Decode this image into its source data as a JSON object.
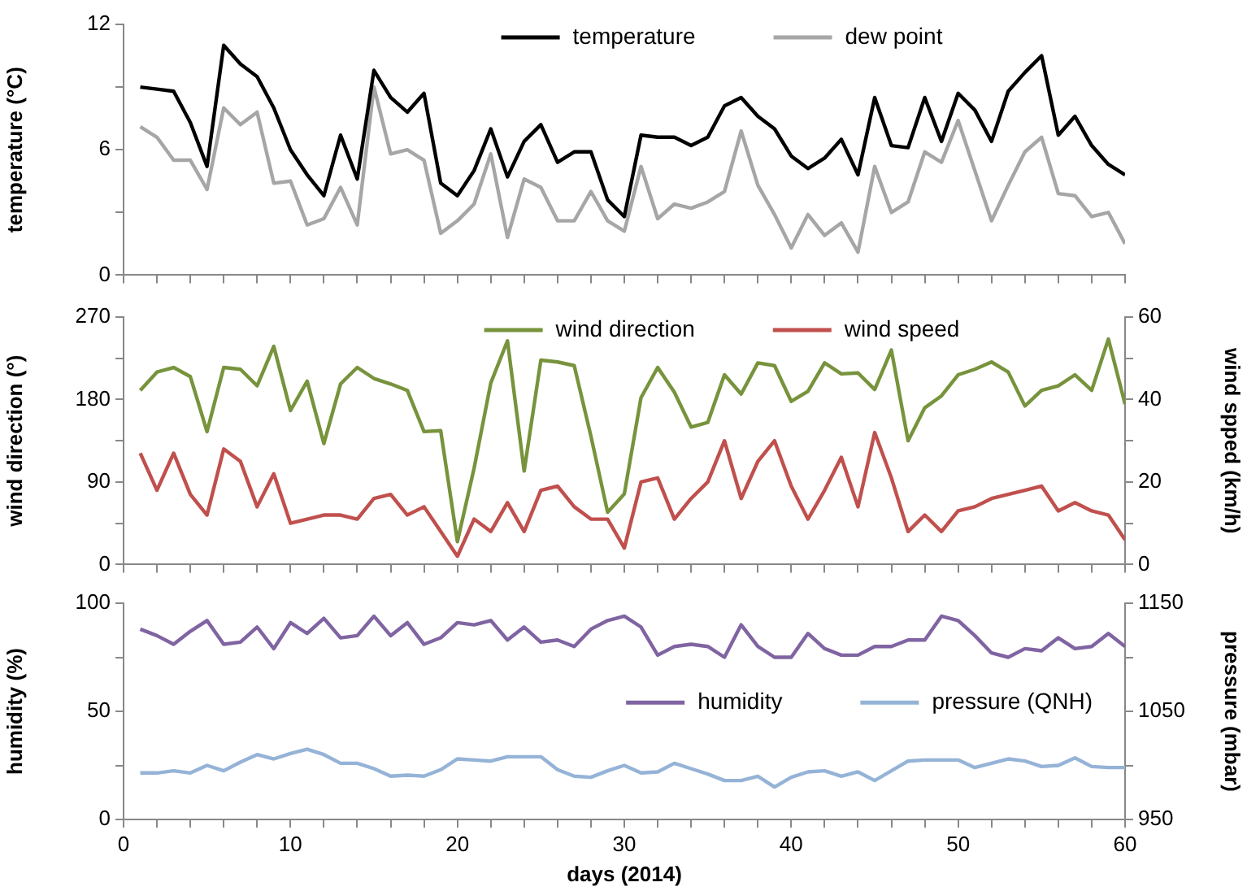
{
  "chart_data": [
    {
      "type": "line",
      "ylabel": "temperature (°C)",
      "x": [
        1,
        2,
        3,
        4,
        5,
        6,
        7,
        8,
        9,
        10,
        11,
        12,
        13,
        14,
        15,
        16,
        17,
        18,
        19,
        20,
        21,
        22,
        23,
        24,
        25,
        26,
        27,
        28,
        29,
        30,
        31,
        32,
        33,
        34,
        35,
        36,
        37,
        38,
        39,
        40,
        41,
        42,
        43,
        44,
        45,
        46,
        47,
        48,
        49,
        50,
        51,
        52,
        53,
        54,
        55,
        56,
        57,
        58,
        59,
        60
      ],
      "xlim": [
        0,
        60
      ],
      "xticks": [
        0,
        {
          "value": 2,
          "label": null
        },
        {
          "value": 4,
          "label": null
        },
        {
          "value": 6,
          "label": null
        },
        {
          "value": 8,
          "label": null
        },
        10,
        {
          "value": 12,
          "label": null
        },
        {
          "value": 14,
          "label": null
        },
        {
          "value": 16,
          "label": null
        },
        {
          "value": 18,
          "label": null
        },
        20,
        {
          "value": 22,
          "label": null
        },
        {
          "value": 24,
          "label": null
        },
        {
          "value": 26,
          "label": null
        },
        {
          "value": 28,
          "label": null
        },
        30,
        {
          "value": 32,
          "label": null
        },
        {
          "value": 34,
          "label": null
        },
        {
          "value": 36,
          "label": null
        },
        {
          "value": 38,
          "label": null
        },
        40,
        {
          "value": 42,
          "label": null
        },
        {
          "value": 44,
          "label": null
        },
        {
          "value": 46,
          "label": null
        },
        {
          "value": 48,
          "label": null
        },
        50,
        {
          "value": 52,
          "label": null
        },
        {
          "value": 54,
          "label": null
        },
        {
          "value": 56,
          "label": null
        },
        {
          "value": 58,
          "label": null
        },
        60
      ],
      "ylim": [
        0,
        12
      ],
      "yticks": [
        0,
        {
          "value": 3,
          "label": null
        },
        6,
        {
          "value": 9,
          "label": null
        },
        12
      ],
      "legend": "top",
      "tick_labels": "y",
      "series": [
        {
          "name": "temperature",
          "color": "#000000",
          "values": [
            9.0,
            8.9,
            8.8,
            7.3,
            5.2,
            11.0,
            10.1,
            9.5,
            8.0,
            6.0,
            4.8,
            3.8,
            6.7,
            4.6,
            9.8,
            8.5,
            7.8,
            8.7,
            4.4,
            3.8,
            5.0,
            7.0,
            4.7,
            6.4,
            7.2,
            5.4,
            5.9,
            5.9,
            3.6,
            2.8,
            6.7,
            6.6,
            6.6,
            6.2,
            6.6,
            8.1,
            8.5,
            7.6,
            7.0,
            5.7,
            5.1,
            5.6,
            6.5,
            4.8,
            8.5,
            6.2,
            6.1,
            8.5,
            6.4,
            8.7,
            7.9,
            6.4,
            8.8,
            9.7,
            10.5,
            6.7,
            7.6,
            6.2,
            5.3,
            4.8
          ]
        },
        {
          "name": "dew point",
          "color": "#a6a6a6",
          "values": [
            7.1,
            6.6,
            5.5,
            5.5,
            4.1,
            8.0,
            7.2,
            7.8,
            4.4,
            4.5,
            2.4,
            2.7,
            4.2,
            2.4,
            9.0,
            5.8,
            6.0,
            5.5,
            2.0,
            2.6,
            3.4,
            5.8,
            1.8,
            4.6,
            4.2,
            2.6,
            2.6,
            4.0,
            2.6,
            2.1,
            5.2,
            2.7,
            3.4,
            3.2,
            3.5,
            4.0,
            6.9,
            4.3,
            2.9,
            1.3,
            2.9,
            1.9,
            2.5,
            1.1,
            5.2,
            3.0,
            3.5,
            5.9,
            5.4,
            7.4,
            5.0,
            2.6,
            4.3,
            5.9,
            6.6,
            3.9,
            3.8,
            2.8,
            3.0,
            1.5
          ]
        }
      ]
    },
    {
      "type": "line",
      "ylabel": "wind direction (°)",
      "y2label": "wind spped (km/h)",
      "x": [
        1,
        2,
        3,
        4,
        5,
        6,
        7,
        8,
        9,
        10,
        11,
        12,
        13,
        14,
        15,
        16,
        17,
        18,
        19,
        20,
        21,
        22,
        23,
        24,
        25,
        26,
        27,
        28,
        29,
        30,
        31,
        32,
        33,
        34,
        35,
        36,
        37,
        38,
        39,
        40,
        41,
        42,
        43,
        44,
        45,
        46,
        47,
        48,
        49,
        50,
        51,
        52,
        53,
        54,
        55,
        56,
        57,
        58,
        59,
        60
      ],
      "xlim": [
        0,
        60
      ],
      "xticks": [
        0,
        {
          "value": 2,
          "label": null
        },
        {
          "value": 4,
          "label": null
        },
        {
          "value": 6,
          "label": null
        },
        {
          "value": 8,
          "label": null
        },
        10,
        {
          "value": 12,
          "label": null
        },
        {
          "value": 14,
          "label": null
        },
        {
          "value": 16,
          "label": null
        },
        {
          "value": 18,
          "label": null
        },
        20,
        {
          "value": 22,
          "label": null
        },
        {
          "value": 24,
          "label": null
        },
        {
          "value": 26,
          "label": null
        },
        {
          "value": 28,
          "label": null
        },
        30,
        {
          "value": 32,
          "label": null
        },
        {
          "value": 34,
          "label": null
        },
        {
          "value": 36,
          "label": null
        },
        {
          "value": 38,
          "label": null
        },
        40,
        {
          "value": 42,
          "label": null
        },
        {
          "value": 44,
          "label": null
        },
        {
          "value": 46,
          "label": null
        },
        {
          "value": 48,
          "label": null
        },
        50,
        {
          "value": 52,
          "label": null
        },
        {
          "value": 54,
          "label": null
        },
        {
          "value": 56,
          "label": null
        },
        {
          "value": 58,
          "label": null
        },
        60
      ],
      "ylim": [
        0,
        270
      ],
      "yticks": [
        0,
        {
          "value": 45,
          "label": null
        },
        90,
        {
          "value": 135,
          "label": null
        },
        180,
        {
          "value": 225,
          "label": null
        },
        270
      ],
      "y2lim": [
        0,
        60
      ],
      "y2ticks": [
        0,
        {
          "value": 10,
          "label": null
        },
        20,
        {
          "value": 30,
          "label": null
        },
        40,
        {
          "value": 50,
          "label": null
        },
        60
      ],
      "legend": "top",
      "tick_labels": "y",
      "series": [
        {
          "name": "wind direction",
          "color": "#77933c",
          "values": [
            190,
            210,
            215,
            205,
            145,
            215,
            213,
            195,
            238,
            168,
            200,
            132,
            197,
            215,
            203,
            197,
            190,
            145,
            146,
            25,
            105,
            198,
            244,
            102,
            223,
            221,
            217,
            140,
            57,
            77,
            182,
            215,
            188,
            150,
            155,
            207,
            186,
            220,
            217,
            178,
            189,
            220,
            208,
            209,
            191,
            234,
            135,
            171,
            184,
            207,
            213,
            221,
            210,
            173,
            190,
            195,
            207,
            190,
            246,
            175
          ]
        },
        {
          "name": "wind speed",
          "color": "#c0504d",
          "axis": "y2",
          "values": [
            27,
            18,
            27,
            17,
            12,
            28,
            25,
            14,
            22,
            10,
            11,
            12,
            12,
            11,
            16,
            17,
            12,
            14,
            8,
            2,
            11,
            8,
            15,
            8,
            18,
            19,
            14,
            11,
            11,
            4,
            20,
            21,
            11,
            16,
            20,
            30,
            16,
            25,
            30,
            19,
            11,
            18,
            26,
            14,
            32,
            21,
            8,
            12,
            8,
            13,
            14,
            16,
            17,
            18,
            19,
            13,
            15,
            13,
            12,
            6
          ]
        }
      ]
    },
    {
      "type": "line",
      "xlabel": "days (2014)",
      "ylabel": "humidity (%)",
      "y2label": "pressure (mbar)",
      "x": [
        1,
        2,
        3,
        4,
        5,
        6,
        7,
        8,
        9,
        10,
        11,
        12,
        13,
        14,
        15,
        16,
        17,
        18,
        19,
        20,
        21,
        22,
        23,
        24,
        25,
        26,
        27,
        28,
        29,
        30,
        31,
        32,
        33,
        34,
        35,
        36,
        37,
        38,
        39,
        40,
        41,
        42,
        43,
        44,
        45,
        46,
        47,
        48,
        49,
        50,
        51,
        52,
        53,
        54,
        55,
        56,
        57,
        58,
        59,
        60
      ],
      "xlim": [
        0,
        60
      ],
      "xticks": [
        0,
        {
          "value": 2,
          "label": null
        },
        {
          "value": 4,
          "label": null
        },
        {
          "value": 6,
          "label": null
        },
        {
          "value": 8,
          "label": null
        },
        10,
        {
          "value": 12,
          "label": null
        },
        {
          "value": 14,
          "label": null
        },
        {
          "value": 16,
          "label": null
        },
        {
          "value": 18,
          "label": null
        },
        20,
        {
          "value": 22,
          "label": null
        },
        {
          "value": 24,
          "label": null
        },
        {
          "value": 26,
          "label": null
        },
        {
          "value": 28,
          "label": null
        },
        30,
        {
          "value": 32,
          "label": null
        },
        {
          "value": 34,
          "label": null
        },
        {
          "value": 36,
          "label": null
        },
        {
          "value": 38,
          "label": null
        },
        40,
        {
          "value": 42,
          "label": null
        },
        {
          "value": 44,
          "label": null
        },
        {
          "value": 46,
          "label": null
        },
        {
          "value": 48,
          "label": null
        },
        50,
        {
          "value": 52,
          "label": null
        },
        {
          "value": 54,
          "label": null
        },
        {
          "value": 56,
          "label": null
        },
        {
          "value": 58,
          "label": null
        },
        60
      ],
      "ylim": [
        0,
        100
      ],
      "yticks": [
        0,
        {
          "value": 25,
          "label": null
        },
        50,
        {
          "value": 75,
          "label": null
        },
        100
      ],
      "y2lim": [
        950,
        1150
      ],
      "y2ticks": [
        950,
        {
          "value": 1000,
          "label": null
        },
        1050,
        {
          "value": 1100,
          "label": null
        },
        1150
      ],
      "legend": "right",
      "series": [
        {
          "name": "humidity",
          "color": "#8064a2",
          "values": [
            88,
            85,
            81,
            87,
            92,
            81,
            82,
            89,
            79,
            91,
            86,
            93,
            84,
            85,
            94,
            85,
            91,
            81,
            84,
            91,
            90,
            92,
            83,
            89,
            82,
            83,
            80,
            88,
            92,
            94,
            89,
            76,
            80,
            81,
            80,
            75,
            90,
            80,
            75,
            75,
            86,
            79,
            76,
            76,
            80,
            80,
            83,
            83,
            94,
            92,
            85,
            77,
            75,
            79,
            78,
            84,
            79,
            80,
            86,
            80
          ]
        },
        {
          "name": "pressure (QNH)",
          "color": "#95b3d7",
          "axis": "y2",
          "values": [
            993,
            993,
            995,
            993,
            1000,
            995,
            1003,
            1010,
            1006,
            1011,
            1015,
            1010,
            1002,
            1002,
            997,
            990,
            991,
            990,
            996,
            1006,
            1005,
            1004,
            1008,
            1008,
            1008,
            996,
            990,
            989,
            995,
            1000,
            993,
            994,
            1002,
            997,
            992,
            986,
            986,
            990,
            980,
            989,
            994,
            995,
            990,
            994,
            986,
            995,
            1004,
            1005,
            1005,
            1005,
            998,
            1002,
            1006,
            1004,
            999,
            1000,
            1007,
            999,
            998,
            998
          ]
        }
      ]
    }
  ]
}
